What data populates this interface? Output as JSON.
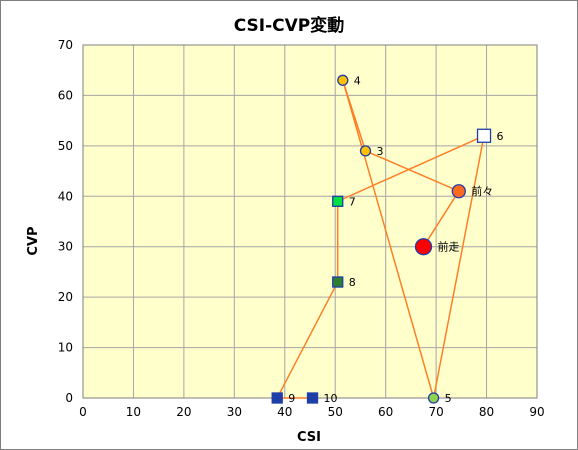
{
  "chart_data": {
    "type": "scatter",
    "title": "CSI-CVP変動",
    "xlabel": "CSI",
    "ylabel": "CVP",
    "xlim": [
      0,
      90
    ],
    "ylim": [
      0,
      70
    ],
    "x_ticks": [
      0,
      10,
      20,
      30,
      40,
      50,
      60,
      70,
      80,
      90
    ],
    "y_ticks": [
      0,
      10,
      20,
      30,
      40,
      50,
      60,
      70
    ],
    "grid": true,
    "legend": "none",
    "colors": {
      "plot_bg": "#ffffcc",
      "grid": "#a6a6a6",
      "line": "#ff7f27",
      "yellow_circle": "#ffc000",
      "orange_circle": "#ff6a20",
      "red_circle": "#ff0000",
      "green_circle": "#92d050",
      "white_square": "#ffffff",
      "green_square": "#00e040",
      "dark_green_square": "#2e7d32",
      "navy_square": "#1f3ea8",
      "marker_outline": "#1f3ea8"
    },
    "points": [
      {
        "label": "前走",
        "x": 67.5,
        "y": 30,
        "marker": "circle",
        "size": "large",
        "fill": "red_circle"
      },
      {
        "label": "前々",
        "x": 74.5,
        "y": 41,
        "marker": "circle",
        "size": "medium",
        "fill": "orange_circle"
      },
      {
        "label": "3",
        "x": 56,
        "y": 49,
        "marker": "circle",
        "size": "small",
        "fill": "yellow_circle"
      },
      {
        "label": "4",
        "x": 51.5,
        "y": 63,
        "marker": "circle",
        "size": "small",
        "fill": "yellow_circle"
      },
      {
        "label": "5",
        "x": 69.5,
        "y": 0,
        "marker": "circle",
        "size": "small",
        "fill": "green_circle"
      },
      {
        "label": "6",
        "x": 79.5,
        "y": 52,
        "marker": "square",
        "size": "medium",
        "fill": "white_square"
      },
      {
        "label": "7",
        "x": 50.5,
        "y": 39,
        "marker": "square",
        "size": "small",
        "fill": "green_square"
      },
      {
        "label": "8",
        "x": 50.5,
        "y": 23,
        "marker": "square",
        "size": "small",
        "fill": "dark_green_square"
      },
      {
        "label": "9",
        "x": 38.5,
        "y": 0,
        "marker": "square",
        "size": "small",
        "fill": "navy_square"
      },
      {
        "label": "10",
        "x": 45.5,
        "y": 0,
        "marker": "square",
        "size": "small",
        "fill": "navy_square"
      }
    ]
  }
}
